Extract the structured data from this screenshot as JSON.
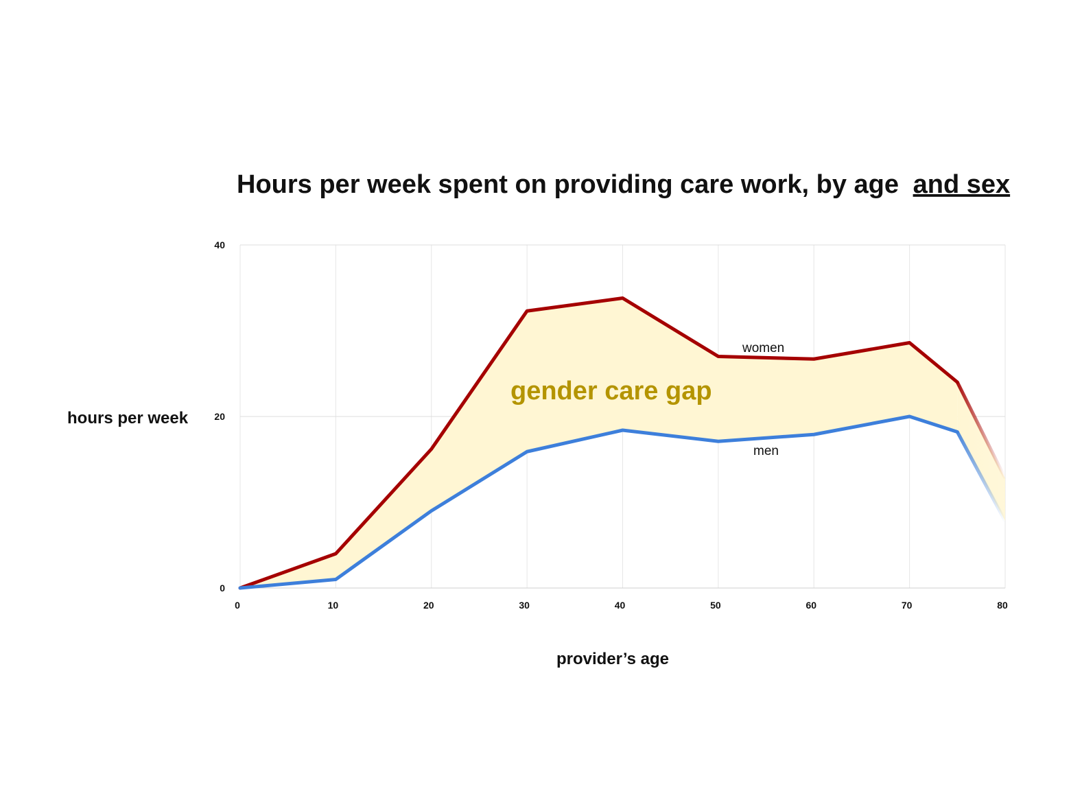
{
  "chart_data": {
    "type": "line",
    "title": "Hours per week spent on providing care work, by age",
    "title_emphasis": "and sex",
    "xlabel": "provider’s age",
    "ylabel": "hours per week",
    "xlim": [
      0,
      80
    ],
    "ylim": [
      0,
      40
    ],
    "x_ticks": [
      "0",
      "10",
      "20",
      "30",
      "40",
      "50",
      "60",
      "70",
      "80"
    ],
    "y_ticks": [
      "0",
      "20",
      "40"
    ],
    "grid": true,
    "legend": "none",
    "series": [
      {
        "name": "women",
        "color": "#a50000",
        "points": [
          [
            0,
            0
          ],
          [
            10,
            4
          ],
          [
            20,
            16.2
          ],
          [
            30,
            32.3
          ],
          [
            40,
            33.8
          ],
          [
            50,
            27
          ],
          [
            60,
            26.7
          ],
          [
            70,
            28.6
          ],
          [
            75,
            24
          ],
          [
            80,
            12.8
          ]
        ]
      },
      {
        "name": "men",
        "color": "#3d7fdb",
        "points": [
          [
            0,
            0
          ],
          [
            10,
            1
          ],
          [
            20,
            9
          ],
          [
            30,
            15.9
          ],
          [
            40,
            18.4
          ],
          [
            50,
            17.1
          ],
          [
            60,
            17.9
          ],
          [
            70,
            20
          ],
          [
            75,
            18.2
          ],
          [
            80,
            7.8
          ]
        ]
      }
    ],
    "gap_area": {
      "label": "gender care gap",
      "fill_color": "#fff6d3",
      "label_color": "#b49400"
    }
  }
}
